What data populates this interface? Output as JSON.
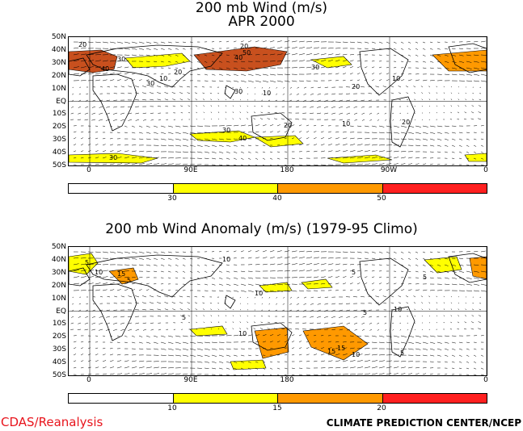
{
  "panel_top": {
    "title_line1": "200 mb Wind (m/s)",
    "title_line2": "APR 2000",
    "lat_labels": [
      "50N",
      "40N",
      "30N",
      "20N",
      "10N",
      "EQ",
      "10S",
      "20S",
      "30S",
      "40S",
      "50S"
    ],
    "lon_labels": [
      "0",
      "90E",
      "180",
      "90W",
      "0"
    ],
    "colorbar_ticks": [
      "30",
      "40",
      "50"
    ],
    "colorbar_colors": [
      "#ffffff",
      "#ffff00",
      "#ff9900",
      "#ff2020"
    ],
    "contour_labels": [
      "20",
      "30",
      "40",
      "50",
      "10",
      "20",
      "30",
      "40",
      "20",
      "30",
      "10",
      "20",
      "30",
      "10",
      "20",
      "10",
      "20",
      "30",
      "40",
      "30"
    ]
  },
  "panel_bottom": {
    "title": "200 mb Wind Anomaly (m/s) (1979-95 Climo)",
    "lat_labels": [
      "50N",
      "40N",
      "30N",
      "20N",
      "10N",
      "EQ",
      "10S",
      "20S",
      "30S",
      "40S",
      "50S"
    ],
    "lon_labels": [
      "0",
      "90E",
      "180",
      "",
      "0"
    ],
    "colorbar_ticks": [
      "10",
      "15",
      "20"
    ],
    "colorbar_colors": [
      "#ffffff",
      "#ffff00",
      "#ff9900",
      "#ff2020"
    ],
    "contour_labels": [
      "5",
      "10",
      "15",
      "5",
      "10",
      "5",
      "10",
      "15",
      "5",
      "10",
      "5",
      "10",
      "5",
      "15",
      "10",
      "5"
    ]
  },
  "footer": {
    "left": "CDAS/Reanalysis",
    "right": "CLIMATE PREDICTION CENTER/NCEP"
  },
  "colors": {
    "shade_yellow": "#ffff00",
    "shade_orange": "#ff9900",
    "shade_red": "#ff2020",
    "shade_dark": "#c8501e",
    "footer_left": "#e8141c"
  }
}
